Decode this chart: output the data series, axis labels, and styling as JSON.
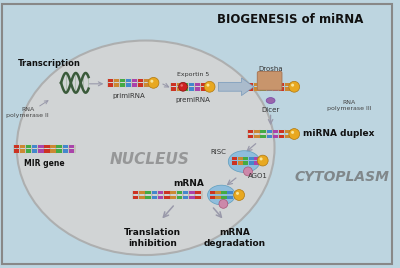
{
  "bg_color": "#bdd5e0",
  "border_color": "#888888",
  "title": "BIOGENESIS of miRNA",
  "nucleus_label": "NUCLEUS",
  "cytoplasm_label": "CYTOPLASM",
  "nucleus_color": "#d4d4d4",
  "nucleus_edge": "#aaaaaa",
  "gold_ball_color": "#e8a820",
  "red_ball_color": "#cc2222",
  "pink_ball_color": "#cc88aa",
  "blue_blob_color": "#88bbdd",
  "drosha_color": "#c8956c",
  "dicer_color": "#9966aa",
  "arrow_color": "#9999aa",
  "fat_arrow_color": "#aabbcc",
  "text_color": "#333333",
  "bold_text_color": "#111111",
  "transcription_label": "Transcription",
  "rna_pol2_label": "RNA\npolymerase II",
  "mir_gene_label": "MIR gene",
  "primirna_label": "primiRNA",
  "premirna_label": "premiRNA",
  "exportin_label": "Exportin 5",
  "drosha_label": "Drosha",
  "dicer_label": "Dicer",
  "rna_pol3_label": "RNA\npolymerase III",
  "mirna_duplex_label": "miRNA duplex",
  "risc_label": "RISC",
  "ago1_label": "AGO1",
  "mrna_label": "mRNA",
  "translation_label": "Translation\ninhibition",
  "degradation_label": "mRNA\ndegradation",
  "strand_colors": [
    "#cc3322",
    "#cc8833",
    "#44aa44",
    "#4488cc",
    "#aa44aa",
    "#cc3322",
    "#cc8833",
    "#44aa44",
    "#4488cc",
    "#aa44aa",
    "#cc3322",
    "#cc8833"
  ]
}
